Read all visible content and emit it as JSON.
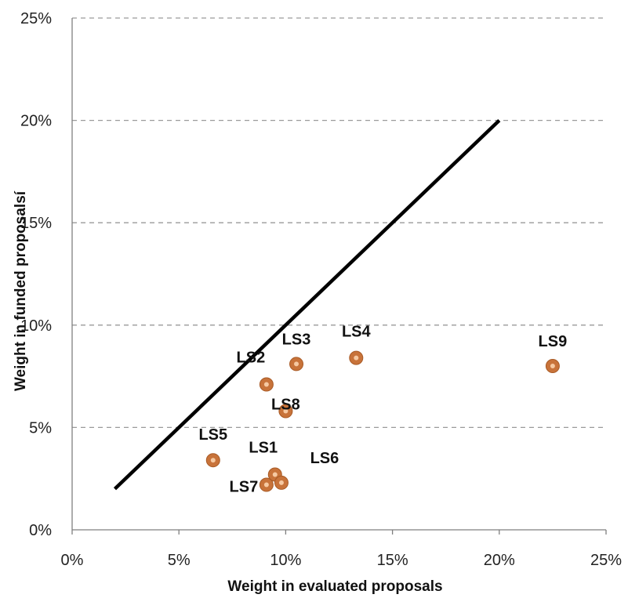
{
  "chart_data": {
    "type": "scatter",
    "title": "",
    "xlabel": "Weight in evaluated proposals",
    "ylabel": "Weight in funded proposalsí",
    "xlim": [
      0,
      25
    ],
    "ylim": [
      0,
      25
    ],
    "xticks": [
      "0%",
      "5%",
      "10%",
      "15%",
      "20%",
      "25%"
    ],
    "yticks": [
      "0%",
      "5%",
      "10%",
      "15%",
      "20%",
      "25%"
    ],
    "grid": "horizontal dashed",
    "reference_line": {
      "x": [
        2,
        20
      ],
      "y": [
        2,
        20
      ],
      "color": "#000000"
    },
    "point_color": "#c8733a",
    "points": [
      {
        "label": "LS1",
        "x": 9.5,
        "y": 2.7
      },
      {
        "label": "LS2",
        "x": 9.1,
        "y": 7.1
      },
      {
        "label": "LS3",
        "x": 10.5,
        "y": 8.1
      },
      {
        "label": "LS4",
        "x": 13.3,
        "y": 8.4
      },
      {
        "label": "LS5",
        "x": 6.6,
        "y": 3.4
      },
      {
        "label": "LS6",
        "x": 9.8,
        "y": 2.3
      },
      {
        "label": "LS7",
        "x": 9.1,
        "y": 2.2
      },
      {
        "label": "LS8",
        "x": 10.0,
        "y": 5.8
      },
      {
        "label": "LS9",
        "x": 22.5,
        "y": 8.0
      }
    ]
  }
}
